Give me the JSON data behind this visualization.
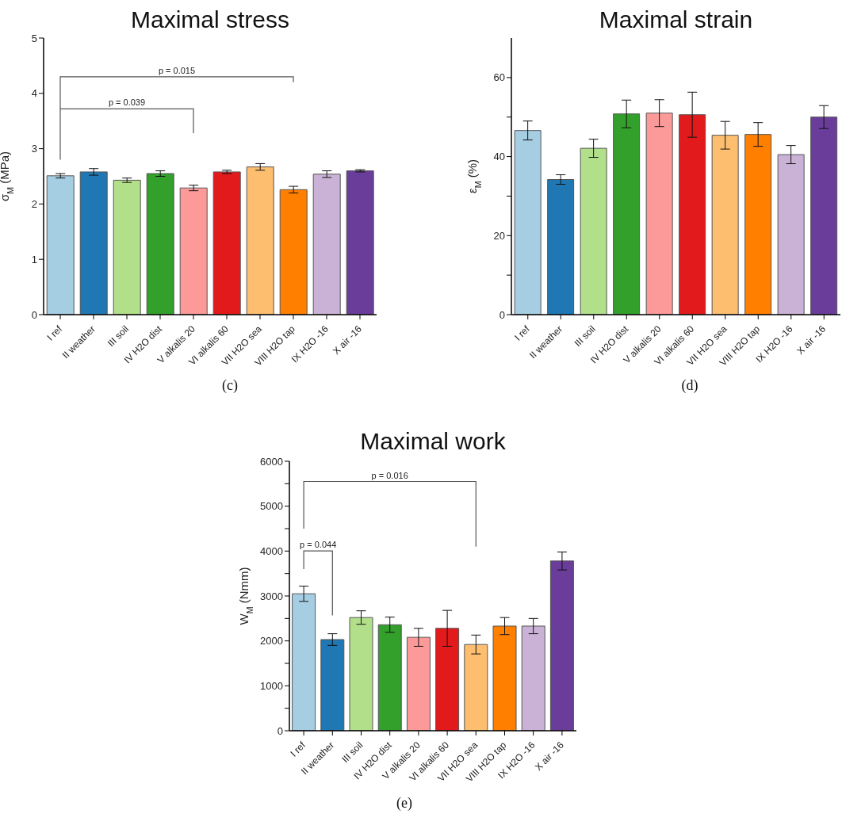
{
  "chart_data": [
    {
      "type": "bar",
      "title": "Maximal stress",
      "ylabel": "σ$_{M}$ (MPa)",
      "categories": [
        "I ref",
        "II weather",
        "III soil",
        "IV H2O dist",
        "V alkalis 20",
        "VI alkalis 60",
        "VII H2O sea",
        "VIII H2O tap",
        "IX H2O -16",
        "X air -16"
      ],
      "values": [
        2.51,
        2.58,
        2.43,
        2.55,
        2.29,
        2.58,
        2.67,
        2.26,
        2.54,
        2.6
      ],
      "errors": [
        0.04,
        0.06,
        0.04,
        0.05,
        0.05,
        0.03,
        0.06,
        0.06,
        0.06,
        0.02
      ],
      "colors": [
        "#a6cee3",
        "#1f78b4",
        "#b2df8a",
        "#33a02c",
        "#fb9a99",
        "#e31a1c",
        "#fdbf6f",
        "#ff7f00",
        "#cab2d6",
        "#6a3d9a"
      ],
      "ylim": [
        0,
        5
      ],
      "yticks": [
        0,
        1,
        2,
        3,
        4,
        5
      ],
      "annotations": [
        "p = 0.039",
        "p = 0.015",
        "(c)"
      ]
    },
    {
      "type": "bar",
      "title": "Maximal strain",
      "ylabel": "ε$_{M}$ (%)",
      "categories": [
        "I ref",
        "II weather",
        "III soil",
        "IV H2O dist",
        "V alkalis 20",
        "VI alkalis 60",
        "VII H2O sea",
        "VIII H2O tap",
        "IX H2O -16",
        "X air -16"
      ],
      "values": [
        46.6,
        34.2,
        42.1,
        50.8,
        51.0,
        50.6,
        45.4,
        45.6,
        40.5,
        50.0
      ],
      "errors": [
        2.4,
        1.2,
        2.3,
        3.5,
        3.4,
        5.7,
        3.5,
        3.0,
        2.3,
        2.9
      ],
      "colors": [
        "#a6cee3",
        "#1f78b4",
        "#b2df8a",
        "#33a02c",
        "#fb9a99",
        "#e31a1c",
        "#fdbf6f",
        "#ff7f00",
        "#cab2d6",
        "#6a3d9a"
      ],
      "ylim": [
        0,
        70
      ],
      "yticks": [
        0,
        {
          "value": 10,
          "label": null
        },
        20,
        {
          "value": 30,
          "label": null
        },
        40,
        {
          "value": 50,
          "label": null
        },
        60
      ],
      "annotations": [
        "(d)"
      ]
    },
    {
      "type": "bar",
      "title": "Maximal work",
      "ylabel": "W$_{M}$ (Nmm)",
      "categories": [
        "I ref",
        "II weather",
        "III soil",
        "IV H2O dist",
        "V alkalis 20",
        "VI alkalis 60",
        "VII H2O sea",
        "VIII H2O tap",
        "IX H2O -16",
        "X air -16"
      ],
      "values": [
        3050,
        2030,
        2520,
        2360,
        2080,
        2280,
        1920,
        2330,
        2330,
        3780
      ],
      "errors": [
        170,
        130,
        150,
        170,
        200,
        400,
        210,
        190,
        170,
        200
      ],
      "colors": [
        "#a6cee3",
        "#1f78b4",
        "#b2df8a",
        "#33a02c",
        "#fb9a99",
        "#e31a1c",
        "#fdbf6f",
        "#ff7f00",
        "#cab2d6",
        "#6a3d9a"
      ],
      "ylim": [
        0,
        6000
      ],
      "yticks": [
        0,
        {
          "value": 500,
          "label": null
        },
        1000,
        {
          "value": 1500,
          "label": null
        },
        2000,
        {
          "value": 2500,
          "label": null
        },
        3000,
        {
          "value": 3500,
          "label": null
        },
        4000,
        {
          "value": 4500,
          "label": null
        },
        5000,
        {
          "value": 5500,
          "label": null
        },
        6000
      ],
      "annotations": [
        "p = 0.044",
        "p = 0.016",
        "(e)"
      ]
    }
  ]
}
